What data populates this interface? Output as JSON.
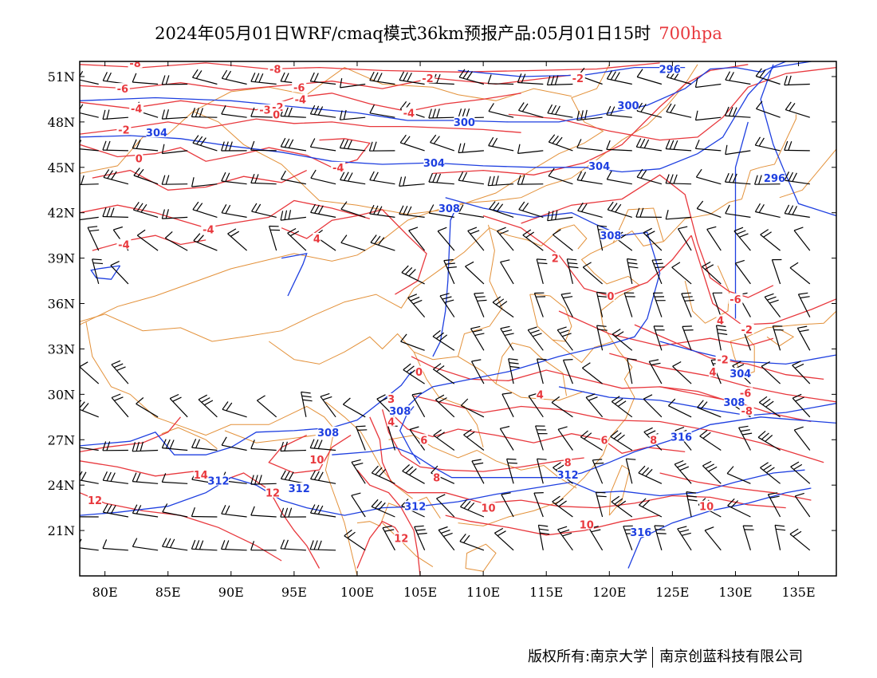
{
  "title": {
    "main": "2024年05月01日WRF/cmaq模式36km预报产品:05月01日15时",
    "level": "700hpa"
  },
  "axes": {
    "lat_labels": [
      "51N",
      "48N",
      "45N",
      "42N",
      "39N",
      "36N",
      "33N",
      "30N",
      "27N",
      "24N",
      "21N"
    ],
    "lat_values": [
      51,
      48,
      45,
      42,
      39,
      36,
      33,
      30,
      27,
      24,
      21
    ],
    "lon_labels": [
      "80E",
      "85E",
      "90E",
      "95E",
      "100E",
      "105E",
      "110E",
      "115E",
      "120E",
      "125E",
      "130E",
      "135E"
    ],
    "lon_values": [
      80,
      85,
      90,
      95,
      100,
      105,
      110,
      115,
      120,
      125,
      130,
      135
    ],
    "lon_range": [
      78,
      138
    ],
    "lat_range": [
      18,
      52
    ]
  },
  "colors": {
    "geopotential": "#1e3fe0",
    "temperature": "#e8383d",
    "border": "#e3913a",
    "wind": "#000000"
  },
  "geopotential_labels": [
    {
      "text": "296",
      "lon": 124.8,
      "lat": 51.5
    },
    {
      "text": "300",
      "lon": 121.5,
      "lat": 49.1
    },
    {
      "text": "300",
      "lon": 108.5,
      "lat": 48.0
    },
    {
      "text": "304",
      "lon": 84.1,
      "lat": 47.3
    },
    {
      "text": "304",
      "lon": 106.1,
      "lat": 45.3
    },
    {
      "text": "304",
      "lon": 119.2,
      "lat": 45.1
    },
    {
      "text": "296",
      "lon": 133.1,
      "lat": 44.3
    },
    {
      "text": "308",
      "lon": 107.3,
      "lat": 42.3
    },
    {
      "text": "308",
      "lon": 120.1,
      "lat": 40.5
    },
    {
      "text": "304",
      "lon": 130.4,
      "lat": 31.4
    },
    {
      "text": "308",
      "lon": 129.9,
      "lat": 29.5
    },
    {
      "text": "308",
      "lon": 97.7,
      "lat": 27.5
    },
    {
      "text": "308",
      "lon": 103.4,
      "lat": 28.9
    },
    {
      "text": "316",
      "lon": 125.7,
      "lat": 27.2
    },
    {
      "text": "312",
      "lon": 89.0,
      "lat": 24.3
    },
    {
      "text": "312",
      "lon": 95.4,
      "lat": 23.8
    },
    {
      "text": "312",
      "lon": 104.6,
      "lat": 22.6
    },
    {
      "text": "312",
      "lon": 116.7,
      "lat": 24.7
    },
    {
      "text": "316",
      "lon": 122.5,
      "lat": 20.9
    }
  ],
  "temperature_labels": [
    {
      "text": "-8",
      "lon": 82.4,
      "lat": 51.9
    },
    {
      "text": "-6",
      "lon": 81.4,
      "lat": 50.2
    },
    {
      "text": "-4",
      "lon": 82.5,
      "lat": 48.9
    },
    {
      "text": "-2",
      "lon": 81.5,
      "lat": 47.5
    },
    {
      "text": "0",
      "lon": 82.7,
      "lat": 45.6
    },
    {
      "text": "-8",
      "lon": 93.5,
      "lat": 51.5
    },
    {
      "text": "-6",
      "lon": 95.4,
      "lat": 50.3
    },
    {
      "text": "-4",
      "lon": 95.5,
      "lat": 49.5
    },
    {
      "text": "-3",
      "lon": 92.7,
      "lat": 48.8
    },
    {
      "text": "-2",
      "lon": 93.7,
      "lat": 49.0
    },
    {
      "text": "0",
      "lon": 93.6,
      "lat": 48.5
    },
    {
      "text": "-4",
      "lon": 98.5,
      "lat": 45.0
    },
    {
      "text": "-4",
      "lon": 104.1,
      "lat": 48.6
    },
    {
      "text": "-2",
      "lon": 105.6,
      "lat": 50.9
    },
    {
      "text": "-4",
      "lon": 88.2,
      "lat": 40.9
    },
    {
      "text": "-4",
      "lon": 81.5,
      "lat": 39.9
    },
    {
      "text": "4",
      "lon": 96.8,
      "lat": 40.3
    },
    {
      "text": "-2",
      "lon": 117.5,
      "lat": 50.9
    },
    {
      "text": "2",
      "lon": 115.7,
      "lat": 39.0
    },
    {
      "text": "0",
      "lon": 120.1,
      "lat": 36.5
    },
    {
      "text": "-6",
      "lon": 130.0,
      "lat": 36.3
    },
    {
      "text": "4",
      "lon": 128.8,
      "lat": 34.9
    },
    {
      "text": "-2",
      "lon": 130.9,
      "lat": 34.3
    },
    {
      "text": "-2",
      "lon": 129.0,
      "lat": 32.3
    },
    {
      "text": "4",
      "lon": 128.2,
      "lat": 31.5
    },
    {
      "text": "-6",
      "lon": 130.8,
      "lat": 30.1
    },
    {
      "text": "-8",
      "lon": 130.9,
      "lat": 28.9
    },
    {
      "text": "0",
      "lon": 104.9,
      "lat": 31.5
    },
    {
      "text": "4",
      "lon": 114.5,
      "lat": 30.0
    },
    {
      "text": "3",
      "lon": 102.7,
      "lat": 29.7
    },
    {
      "text": "4",
      "lon": 102.7,
      "lat": 28.2
    },
    {
      "text": "6",
      "lon": 105.3,
      "lat": 27.0
    },
    {
      "text": "6",
      "lon": 119.6,
      "lat": 27.0
    },
    {
      "text": "8",
      "lon": 123.5,
      "lat": 27.0
    },
    {
      "text": "8",
      "lon": 116.7,
      "lat": 25.5
    },
    {
      "text": "8",
      "lon": 106.3,
      "lat": 24.5
    },
    {
      "text": "10",
      "lon": 96.8,
      "lat": 25.7
    },
    {
      "text": "12",
      "lon": 93.3,
      "lat": 23.5
    },
    {
      "text": "14",
      "lon": 87.6,
      "lat": 24.7
    },
    {
      "text": "12",
      "lon": 79.2,
      "lat": 23.0
    },
    {
      "text": "10",
      "lon": 110.4,
      "lat": 22.5
    },
    {
      "text": "10",
      "lon": 118.2,
      "lat": 21.4
    },
    {
      "text": "12",
      "lon": 103.5,
      "lat": 20.5
    },
    {
      "text": "10",
      "lon": 127.7,
      "lat": 22.6
    }
  ],
  "wind_samples": "Wind barbs plotted on ~2.2° grid at 700hPa",
  "footer": {
    "owner": "版权所有:南京大学",
    "company": "南京创蓝科技有限公司"
  }
}
